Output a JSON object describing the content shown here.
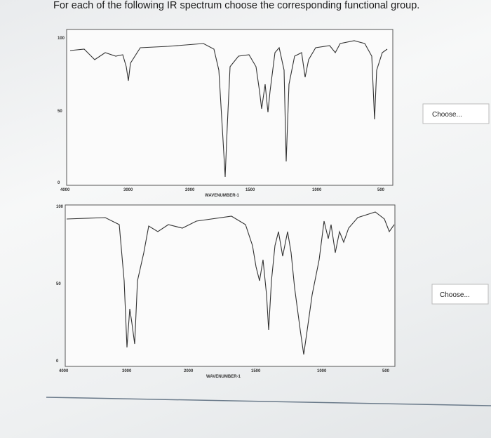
{
  "question": "For each of the following IR spectrum choose the corresponding functional group.",
  "spectra": [
    {
      "y_tick_labels": [
        "100",
        "50",
        "0"
      ],
      "x_tick_labels": [
        "4000",
        "3000",
        "2000",
        "1500",
        "1000",
        "500"
      ],
      "x_axis_label": "WAVENUMBER-1",
      "dropdown": "Choose..."
    },
    {
      "y_tick_labels": [
        "100",
        "50",
        "0"
      ],
      "x_tick_labels": [
        "4000",
        "3000",
        "2000",
        "1500",
        "1000",
        "500"
      ],
      "x_axis_label": "WAVENUMBER-1",
      "dropdown": "Choose..."
    }
  ]
}
